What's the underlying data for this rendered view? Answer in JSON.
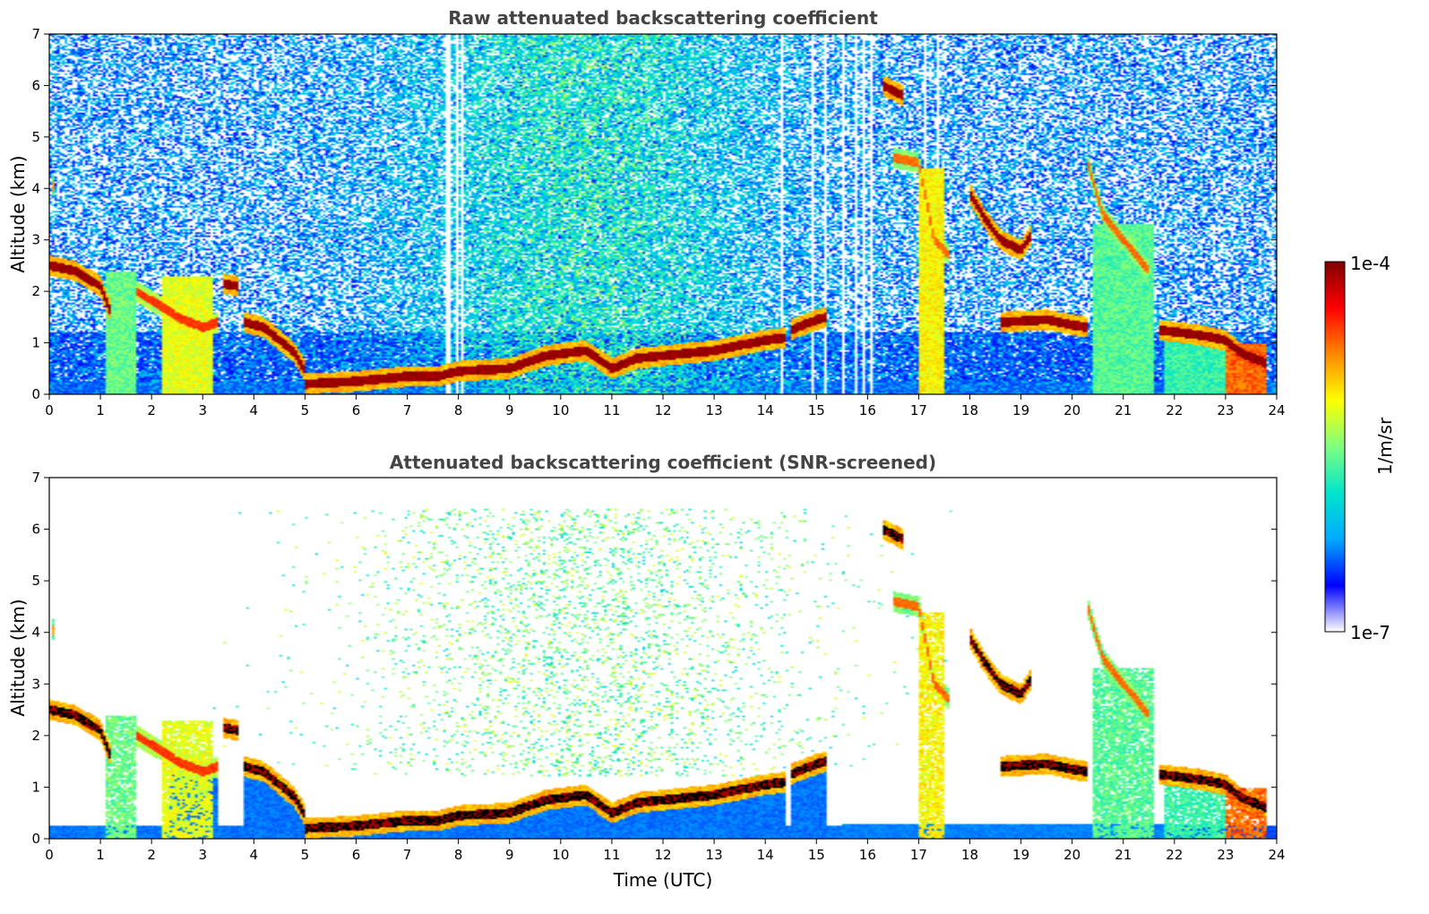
{
  "chart_data": [
    {
      "type": "heatmap",
      "title": "Raw attenuated backscattering coefficient",
      "xlabel": "",
      "ylabel": "Altitude (km)",
      "xlim": [
        0,
        24
      ],
      "ylim": [
        0,
        7
      ],
      "xticks": [
        "0",
        "1",
        "2",
        "3",
        "4",
        "5",
        "6",
        "7",
        "8",
        "9",
        "10",
        "11",
        "12",
        "13",
        "14",
        "15",
        "16",
        "17",
        "18",
        "19",
        "20",
        "21",
        "22",
        "23",
        "24"
      ],
      "yticks": [
        "0",
        "1",
        "2",
        "3",
        "4",
        "5",
        "6",
        "7"
      ],
      "screened": false,
      "layers": [
        {
          "points": [
            [
              0.0,
              2.5
            ],
            [
              0.5,
              2.4
            ],
            [
              1.0,
              2.1
            ],
            [
              1.2,
              1.6
            ]
          ],
          "intensity": 1.0
        },
        {
          "points": [
            [
              1.7,
              2.0
            ],
            [
              2.2,
              1.7
            ],
            [
              2.5,
              1.5
            ],
            [
              3.0,
              1.3
            ],
            [
              3.3,
              1.4
            ]
          ],
          "intensity": 0.85
        },
        {
          "points": [
            [
              3.4,
              2.15
            ],
            [
              3.7,
              2.1
            ]
          ],
          "intensity": 1.0
        },
        {
          "points": [
            [
              3.8,
              1.4
            ],
            [
              4.2,
              1.3
            ],
            [
              4.5,
              1.05
            ],
            [
              4.8,
              0.8
            ],
            [
              5.0,
              0.45
            ]
          ],
          "intensity": 1.0
        },
        {
          "points": [
            [
              5.0,
              0.2
            ],
            [
              6.0,
              0.25
            ],
            [
              7.0,
              0.35
            ],
            [
              7.6,
              0.35
            ],
            [
              8.0,
              0.45
            ],
            [
              9.0,
              0.5
            ],
            [
              9.7,
              0.75
            ],
            [
              10.5,
              0.85
            ],
            [
              11.0,
              0.5
            ],
            [
              11.5,
              0.7
            ],
            [
              12.0,
              0.75
            ],
            [
              13.0,
              0.85
            ],
            [
              14.0,
              1.05
            ],
            [
              14.4,
              1.1
            ]
          ],
          "intensity": 1.0
        },
        {
          "points": [
            [
              14.5,
              1.25
            ],
            [
              15.0,
              1.45
            ],
            [
              15.2,
              1.5
            ]
          ],
          "intensity": 1.0
        },
        {
          "points": [
            [
              16.3,
              6.0
            ],
            [
              16.7,
              5.8
            ]
          ],
          "intensity": 1.0
        },
        {
          "points": [
            [
              16.5,
              4.6
            ],
            [
              17.0,
              4.5
            ],
            [
              17.3,
              3.0
            ],
            [
              17.6,
              2.7
            ]
          ],
          "intensity": 0.8
        },
        {
          "points": [
            [
              18.0,
              3.9
            ],
            [
              18.3,
              3.4
            ],
            [
              18.6,
              3.0
            ],
            [
              19.0,
              2.8
            ],
            [
              19.2,
              3.1
            ]
          ],
          "intensity": 1.0
        },
        {
          "points": [
            [
              18.6,
              1.4
            ],
            [
              19.5,
              1.45
            ],
            [
              20.0,
              1.35
            ],
            [
              20.3,
              1.3
            ]
          ],
          "intensity": 1.0
        },
        {
          "points": [
            [
              20.3,
              4.5
            ],
            [
              20.6,
              3.5
            ],
            [
              21.0,
              3.0
            ],
            [
              21.5,
              2.4
            ]
          ],
          "intensity": 0.8
        },
        {
          "points": [
            [
              21.7,
              1.25
            ],
            [
              22.5,
              1.15
            ],
            [
              23.0,
              1.05
            ],
            [
              23.3,
              0.8
            ],
            [
              23.8,
              0.6
            ]
          ],
          "intensity": 1.0
        },
        {
          "points": [
            [
              0.05,
              4.0
            ],
            [
              0.1,
              4.1
            ]
          ],
          "intensity": 0.75
        }
      ],
      "columns": [
        {
          "x0": 1.1,
          "x1": 1.7,
          "top": 2.4,
          "intensity": 0.5
        },
        {
          "x0": 2.2,
          "x1": 3.2,
          "top": 2.3,
          "intensity": 0.62
        },
        {
          "x0": 17.0,
          "x1": 17.5,
          "top": 4.4,
          "intensity": 0.65
        },
        {
          "x0": 20.4,
          "x1": 21.6,
          "top": 3.3,
          "intensity": 0.48
        },
        {
          "x0": 21.8,
          "x1": 23.0,
          "top": 1.1,
          "intensity": 0.45
        },
        {
          "x0": 23.0,
          "x1": 23.8,
          "top": 1.0,
          "intensity": 0.8
        }
      ],
      "gaps": [
        7.6,
        7.7,
        7.8,
        7.85,
        7.95,
        8.1,
        14.35,
        14.6,
        14.9,
        15.2,
        15.5,
        15.8,
        15.9,
        15.95,
        16.05,
        17.1,
        17.4
      ]
    },
    {
      "type": "heatmap",
      "title": "Attenuated backscattering coefficient (SNR-screened)",
      "xlabel": "Time (UTC)",
      "ylabel": "Altitude (km)",
      "xlim": [
        0,
        24
      ],
      "ylim": [
        0,
        7
      ],
      "xticks": [
        "0",
        "1",
        "2",
        "3",
        "4",
        "5",
        "6",
        "7",
        "8",
        "9",
        "10",
        "11",
        "12",
        "13",
        "14",
        "15",
        "16",
        "17",
        "18",
        "19",
        "20",
        "21",
        "22",
        "23",
        "24"
      ],
      "yticks": [
        "0",
        "1",
        "2",
        "3",
        "4",
        "5",
        "6",
        "7"
      ],
      "screened": true
    }
  ],
  "colorbar": {
    "label": "1/m/sr",
    "max_label": "1e-4",
    "min_label": "1e-7",
    "colormap": [
      "#ffffff",
      "#0000ff",
      "#00aaff",
      "#00e5cc",
      "#7fff7f",
      "#ffff00",
      "#ff8800",
      "#ff0000",
      "#800000"
    ]
  }
}
